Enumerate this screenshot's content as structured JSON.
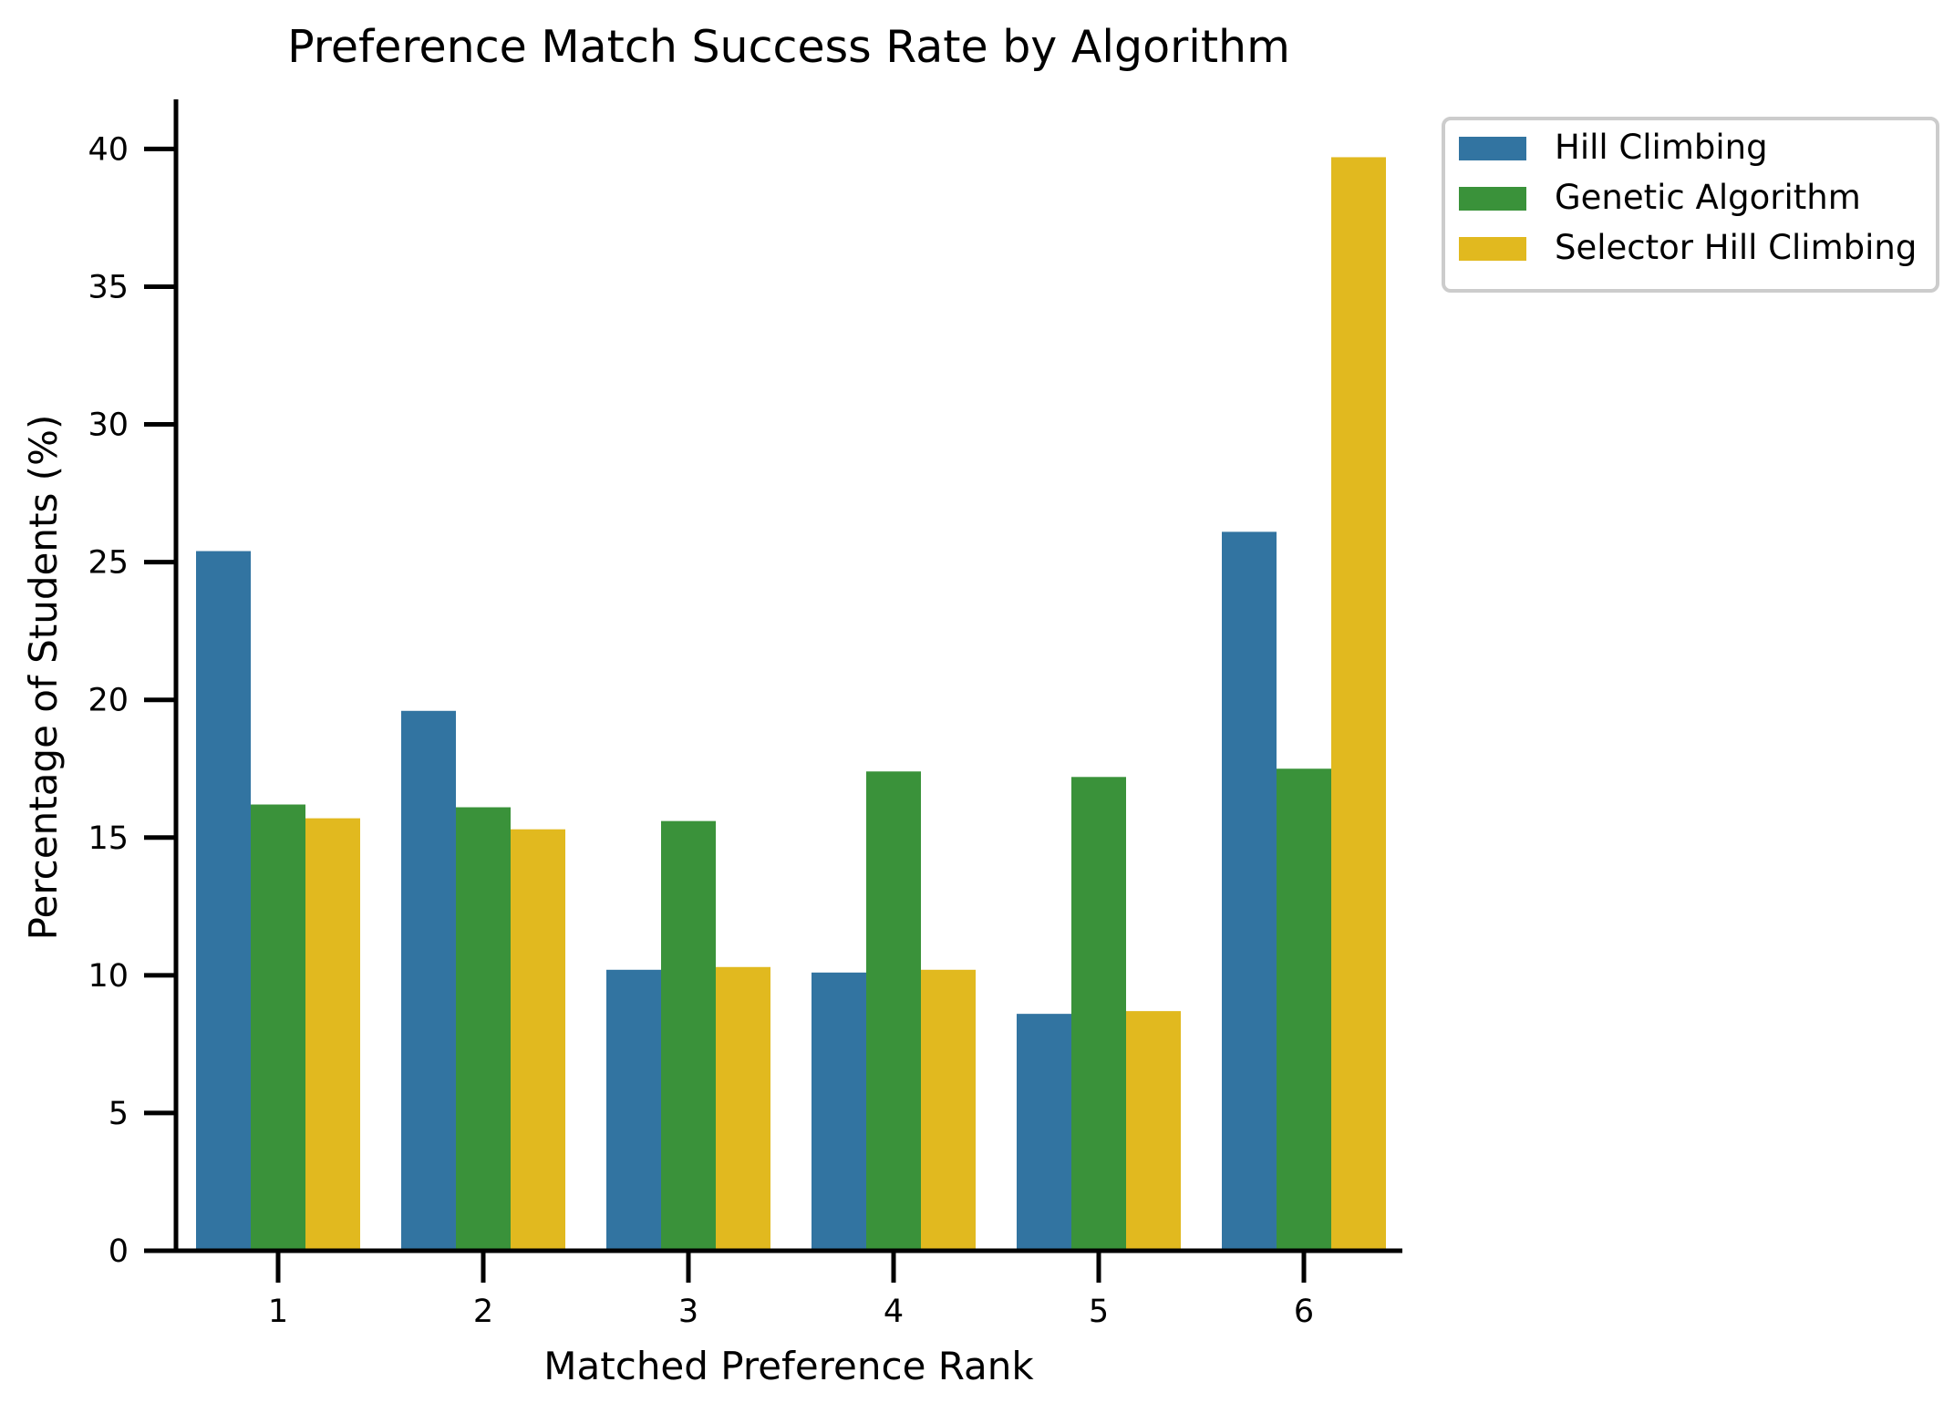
{
  "chart_data": {
    "type": "bar",
    "title": "Preference Match Success Rate by Algorithm",
    "xlabel": "Matched Preference Rank",
    "ylabel": "Percentage of Students (%)",
    "categories": [
      "1",
      "2",
      "3",
      "4",
      "5",
      "6"
    ],
    "ylim": [
      0,
      41.8
    ],
    "yticks": [
      "0",
      "5",
      "10",
      "15",
      "20",
      "25",
      "30",
      "35",
      "40"
    ],
    "grid": false,
    "legend_position": "outside-top-right",
    "series": [
      {
        "name": "Hill Climbing",
        "color": "#3274a1",
        "values": [
          25.4,
          19.6,
          10.2,
          10.1,
          8.6,
          26.1
        ]
      },
      {
        "name": "Genetic Algorithm",
        "color": "#3a923a",
        "values": [
          16.2,
          16.1,
          15.6,
          17.4,
          17.2,
          17.5
        ]
      },
      {
        "name": "Selector Hill Climbing",
        "color": "#e1b91f",
        "values": [
          15.7,
          15.3,
          10.3,
          10.2,
          8.7,
          39.7
        ]
      }
    ]
  }
}
